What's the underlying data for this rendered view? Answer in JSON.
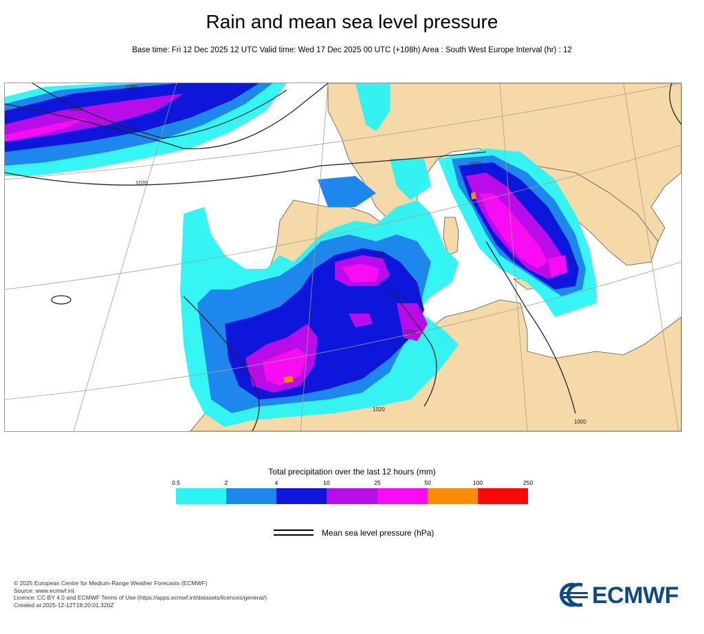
{
  "header": {
    "title": "Rain and mean sea level pressure",
    "subtitle": "Base time: Fri 12 Dec 2025 12 UTC Valid time: Wed 17 Dec 2025 00 UTC (+108h) Area : South West Europe Interval (hr) : 12"
  },
  "map": {
    "area": "South West Europe",
    "land_color": "#f5d9a8",
    "sea_color": "#ffffff",
    "isobar_labels": [
      "1000",
      "1010",
      "1020",
      "1010",
      "1010",
      "1020",
      "1010",
      "1000"
    ]
  },
  "legend": {
    "title": "Total precipitation over the last 12 hours (mm)",
    "ticks": [
      "0.5",
      "2",
      "4",
      "10",
      "25",
      "50",
      "100",
      "250"
    ],
    "colors": [
      "#2af4f4",
      "#1e87ee",
      "#0f16dc",
      "#b90ce8",
      "#f70cf4",
      "#f88c06",
      "#f80808"
    ]
  },
  "mslp_legend": {
    "label": "Mean sea level pressure (hPa)"
  },
  "footer": {
    "lines": [
      "© 2025 European Centre for Medium-Range Weather Forecasts (ECMWF)",
      "Source: www.ecmwf.int",
      "Licence: CC BY 4.0 and ECMWF Terms of Use (https://apps.ecmwf.int/datasets/licences/general/)",
      "Created at 2025-12-12T18:20:01.320Z"
    ]
  },
  "logo": {
    "text": "ECMWF",
    "color": "#0a4a85"
  }
}
